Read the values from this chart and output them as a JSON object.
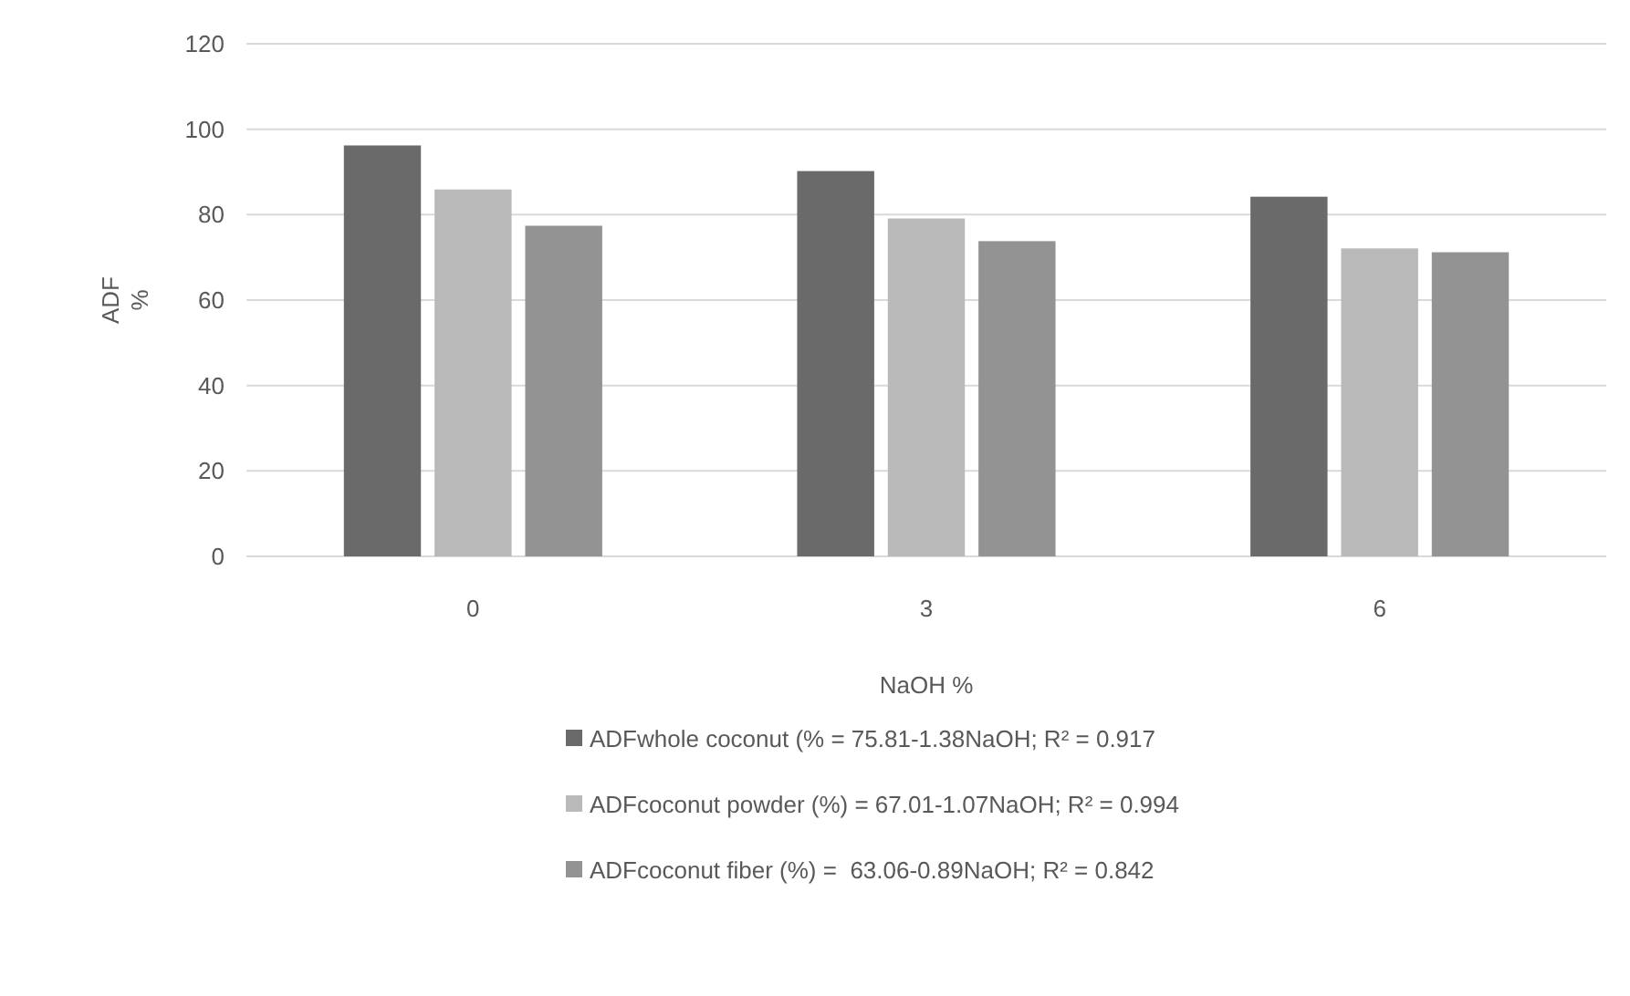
{
  "chart_data": {
    "type": "bar",
    "xlabel": "NaOH %",
    "ylabel": "ADF %",
    "categories": [
      "0",
      "3",
      "6"
    ],
    "series": [
      {
        "name": "ADFwhole coconut (% = 75.81-1.38NaOH; R² = 0.917",
        "color": "#6a6a6a",
        "values": [
          96.2,
          90.2,
          84.2
        ]
      },
      {
        "name": "ADFcoconut powder (%) = 67.01-1.07NaOH; R² = 0.994",
        "color": "#b9b9b9",
        "values": [
          85.9,
          79.1,
          72.1
        ]
      },
      {
        "name": "ADFcoconut fiber (%) =  63.06-0.89NaOH; R² = 0.842",
        "color": "#939393",
        "values": [
          77.4,
          73.8,
          71.2
        ]
      }
    ],
    "ylim": [
      0,
      120
    ],
    "yticks": [
      0,
      20,
      40,
      60,
      80,
      100,
      120
    ],
    "grid": "y",
    "legend": "bottom"
  }
}
